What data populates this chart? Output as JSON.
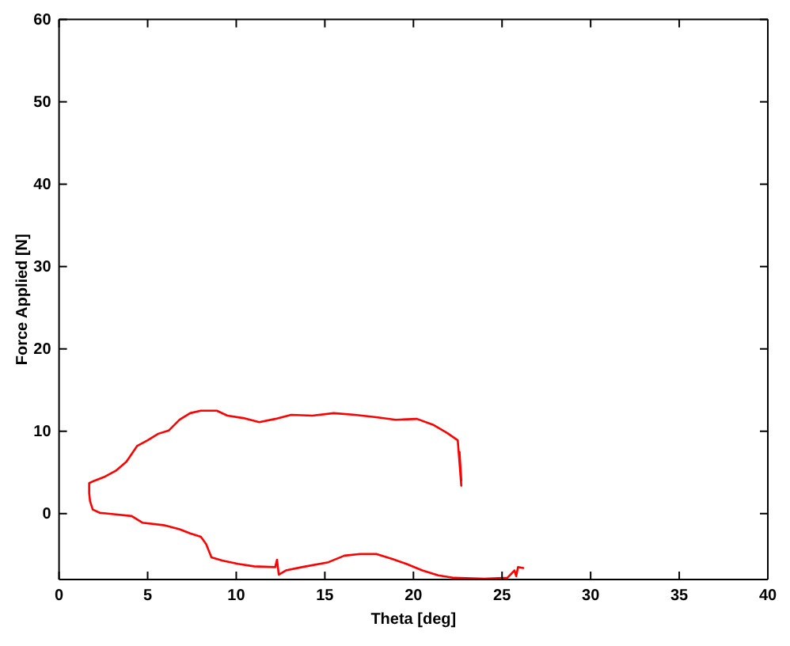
{
  "chart_data": {
    "type": "line",
    "xlabel": "Theta [deg]",
    "ylabel": "Force Applied [N]",
    "xlim": [
      0,
      40
    ],
    "ylim": [
      -8,
      60
    ],
    "xticks": [
      0,
      5,
      10,
      15,
      20,
      25,
      30,
      35,
      40
    ],
    "yticks": [
      0,
      10,
      20,
      30,
      40,
      50,
      60
    ],
    "series": [
      {
        "color": "#ff0000",
        "x": [
          26.2,
          25.9,
          25.8,
          25.7,
          25.3,
          24.0,
          22.3,
          21.4,
          20.5,
          19.6,
          18.8,
          17.9,
          17.0,
          16.1,
          15.2,
          13.7,
          12.8,
          12.4,
          12.3,
          12.2,
          11.0,
          10.1,
          9.2,
          8.6,
          8.3,
          8.0,
          7.4,
          6.8,
          5.9,
          4.7,
          4.1,
          3.2,
          2.3,
          1.9,
          1.75,
          1.7,
          1.7,
          2.0,
          2.6,
          3.2,
          3.8,
          4.4,
          5.0,
          5.6,
          6.2,
          6.8,
          7.4,
          8.0,
          8.9,
          9.5,
          10.4,
          11.3,
          12.2,
          13.1,
          14.3,
          15.5,
          16.7,
          17.9,
          19.0,
          20.2,
          21.1,
          21.9,
          22.5,
          22.7,
          22.6,
          22.7
        ],
        "values": [
          -6.6,
          -6.5,
          -7.6,
          -6.9,
          -7.8,
          -7.9,
          -7.8,
          -7.5,
          -6.9,
          -6.1,
          -5.5,
          -4.9,
          -4.9,
          -5.1,
          -5.9,
          -6.5,
          -6.9,
          -7.4,
          -5.6,
          -6.5,
          -6.4,
          -6.1,
          -5.7,
          -5.3,
          -3.7,
          -2.8,
          -2.4,
          -1.9,
          -1.4,
          -1.1,
          -0.3,
          -0.1,
          0.1,
          0.5,
          1.5,
          2.5,
          3.7,
          4.0,
          4.5,
          5.2,
          6.3,
          8.2,
          8.9,
          9.7,
          10.1,
          11.4,
          12.2,
          12.5,
          12.5,
          11.9,
          11.6,
          11.1,
          11.5,
          12.0,
          11.9,
          12.2,
          12.0,
          11.7,
          11.4,
          11.5,
          10.8,
          9.8,
          8.9,
          3.4,
          7.5,
          4.0
        ]
      }
    ]
  }
}
